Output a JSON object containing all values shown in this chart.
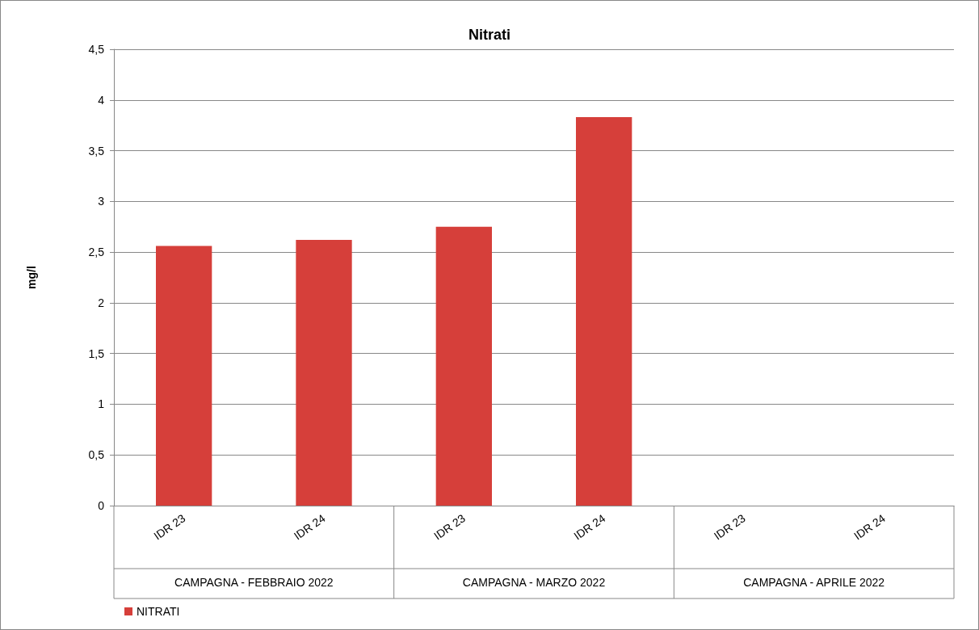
{
  "chart_data": {
    "type": "bar",
    "title": "Nitrati",
    "ylabel": "mg/l",
    "categories": [
      "IDR 23",
      "IDR 24",
      "IDR 23",
      "IDR 24",
      "IDR 23",
      "IDR 24"
    ],
    "series": [
      {
        "name": "NITRATI",
        "color": "#d63f3a",
        "values": [
          2.56,
          2.62,
          2.75,
          3.83,
          null,
          null
        ]
      }
    ],
    "ylim": [
      0,
      4.5
    ],
    "yticks": [
      0,
      {
        "value": 0.5,
        "label": "0,5"
      },
      1,
      {
        "value": 1.5,
        "label": "1,5"
      },
      2,
      {
        "value": 2.5,
        "label": "2,5"
      },
      3,
      {
        "value": 3.5,
        "label": "3,5"
      },
      4,
      {
        "value": 4.5,
        "label": "4,5"
      }
    ],
    "annotations": [
      "CAMPAGNA - FEBBRAIO 2022",
      "CAMPAGNA - MARZO 2022",
      "CAMPAGNA - APRILE 2022"
    ],
    "grid": "y",
    "legend": "bottom left"
  }
}
